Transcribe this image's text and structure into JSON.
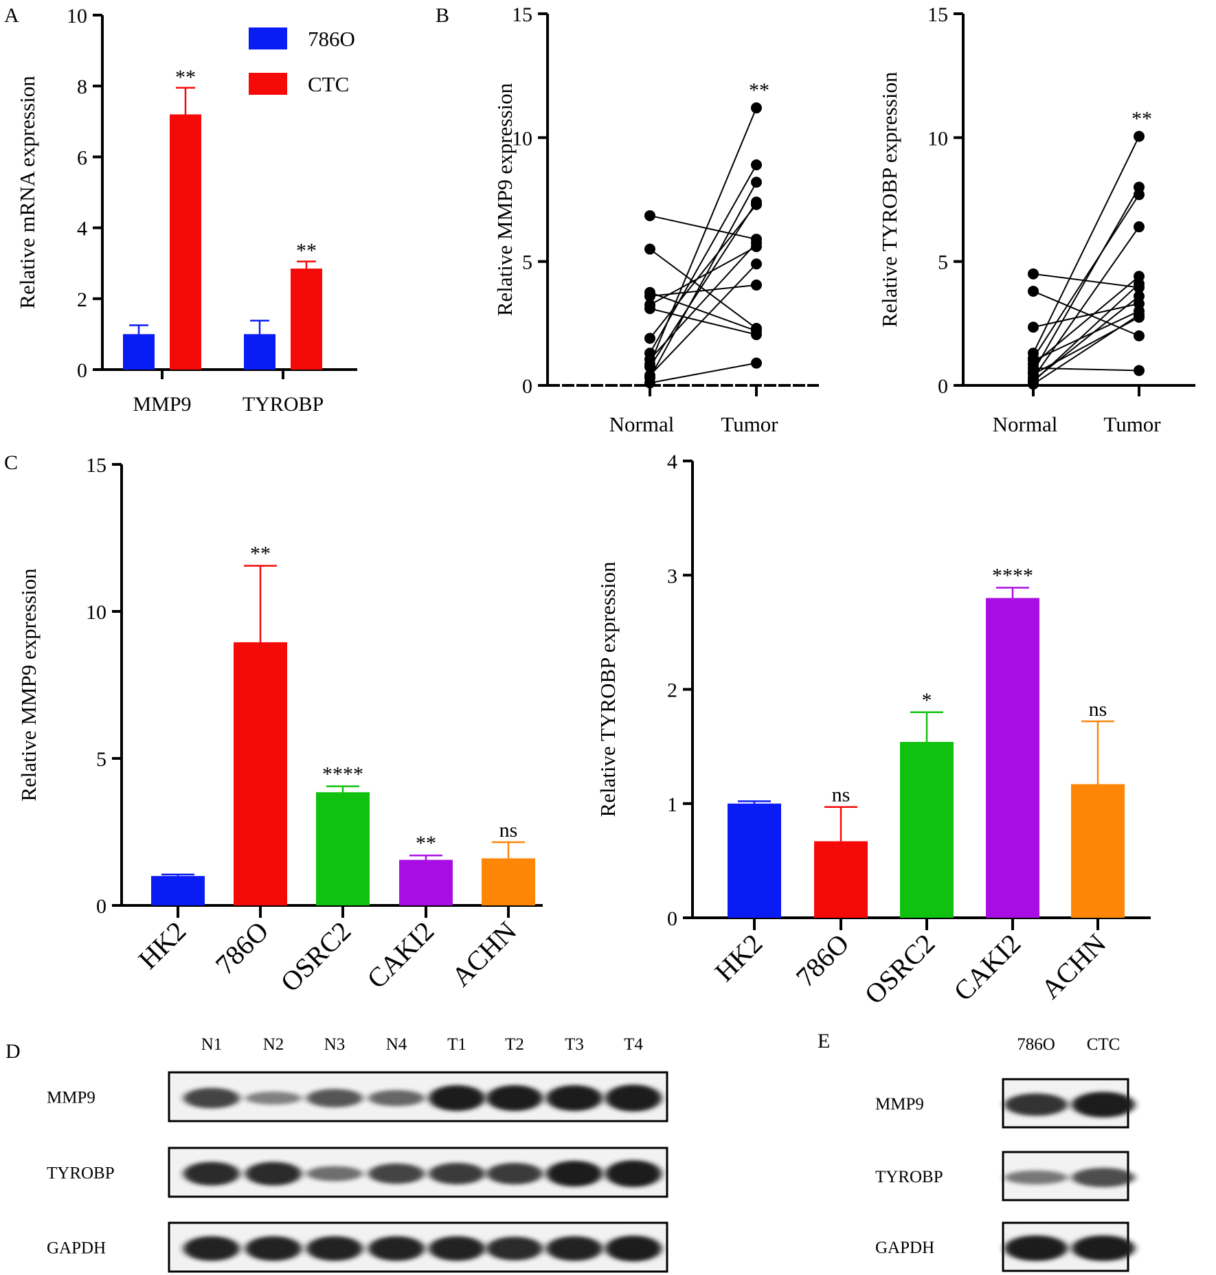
{
  "colors": {
    "blue": "#0a1cf4",
    "red": "#f50a0a",
    "green": "#10c10f",
    "purple": "#a80ee4",
    "orange": "#fe8607",
    "band": "#1a1a1a"
  },
  "panel_labels": {
    "A": "A",
    "B": "B",
    "C": "C",
    "D": "D",
    "E": "E"
  },
  "chart_data": [
    {
      "id": "A",
      "type": "bar",
      "title": "",
      "xlabel": "",
      "ylabel": "Relative mRNA expression",
      "ylim": [
        0,
        10
      ],
      "yticks": [
        0,
        2,
        4,
        6,
        8,
        10
      ],
      "categories": [
        "MMP9",
        "TYROBP"
      ],
      "legend_position": "top-right",
      "series": [
        {
          "name": "786O",
          "color": "blue",
          "values": [
            1.0,
            1.0
          ],
          "errors": [
            0.25,
            0.38
          ],
          "significance": [
            "",
            ""
          ]
        },
        {
          "name": "CTC",
          "color": "red",
          "values": [
            7.2,
            2.85
          ],
          "errors": [
            0.75,
            0.2
          ],
          "significance": [
            "**",
            "**"
          ]
        }
      ]
    },
    {
      "id": "B1",
      "type": "scatter",
      "subtype": "paired",
      "title": "",
      "xlabel": "",
      "ylabel": "Relative MMP9 expression",
      "ylim": [
        0,
        15
      ],
      "yticks": [
        0,
        5,
        10,
        15
      ],
      "categories": [
        "Normal",
        "Tumor"
      ],
      "significance": "**",
      "pairs": [
        [
          6.85,
          5.9
        ],
        [
          5.5,
          2.3
        ],
        [
          3.75,
          2.2
        ],
        [
          3.6,
          4.05
        ],
        [
          3.25,
          5.6
        ],
        [
          3.1,
          2.05
        ],
        [
          1.9,
          7.3
        ],
        [
          1.3,
          8.9
        ],
        [
          1.05,
          5.75
        ],
        [
          0.85,
          11.2
        ],
        [
          0.75,
          7.4
        ],
        [
          0.4,
          4.9
        ],
        [
          0.3,
          8.2
        ],
        [
          0.1,
          0.9
        ]
      ]
    },
    {
      "id": "B2",
      "type": "scatter",
      "subtype": "paired",
      "title": "",
      "xlabel": "",
      "ylabel": "Relative TYROBP expression",
      "ylim": [
        0,
        15
      ],
      "yticks": [
        0,
        5,
        10,
        15
      ],
      "categories": [
        "Normal",
        "Tumor"
      ],
      "significance": "**",
      "pairs": [
        [
          4.5,
          3.95
        ],
        [
          3.8,
          2.0
        ],
        [
          2.35,
          3.3
        ],
        [
          1.3,
          10.05
        ],
        [
          1.1,
          7.7
        ],
        [
          0.85,
          4.4
        ],
        [
          0.55,
          8.0
        ],
        [
          0.45,
          2.75
        ],
        [
          0.3,
          6.4
        ],
        [
          0.2,
          3.6
        ],
        [
          0.7,
          0.6
        ],
        [
          0.15,
          4.1
        ],
        [
          1.0,
          3.0
        ],
        [
          0.05,
          2.85
        ]
      ]
    },
    {
      "id": "C1",
      "type": "bar",
      "title": "",
      "xlabel": "",
      "ylabel": "Relative MMP9 expression",
      "ylim": [
        0,
        15
      ],
      "yticks": [
        0,
        5,
        10,
        15
      ],
      "categories": [
        "HK2",
        "786O",
        "OSRC2",
        "CAKI2",
        "ACHN"
      ],
      "colors": [
        "blue",
        "red",
        "green",
        "purple",
        "orange"
      ],
      "values": [
        1.0,
        8.95,
        3.85,
        1.55,
        1.6
      ],
      "errors": [
        0.05,
        2.6,
        0.2,
        0.15,
        0.55
      ],
      "significance": [
        "",
        "**",
        "****",
        "**",
        "ns"
      ]
    },
    {
      "id": "C2",
      "type": "bar",
      "title": "",
      "xlabel": "",
      "ylabel": "Relative TYROBP expression",
      "ylim": [
        0,
        4
      ],
      "yticks": [
        0,
        1,
        2,
        3,
        4
      ],
      "categories": [
        "HK2",
        "786O",
        "OSRC2",
        "CAKI2",
        "ACHN"
      ],
      "colors": [
        "blue",
        "red",
        "green",
        "purple",
        "orange"
      ],
      "values": [
        1.0,
        0.67,
        1.54,
        2.8,
        1.17
      ],
      "errors": [
        0.02,
        0.3,
        0.26,
        0.09,
        0.55
      ],
      "significance": [
        "",
        "ns",
        "*",
        "****",
        "ns"
      ]
    }
  ],
  "western_blots": [
    {
      "id": "D",
      "lanes": [
        "N1",
        "N2",
        "N3",
        "N4",
        "T1",
        "T2",
        "T3",
        "T4"
      ],
      "rows": [
        {
          "label": "MMP9",
          "intensity": [
            0.7,
            0.35,
            0.6,
            0.5,
            0.95,
            0.95,
            0.95,
            1.0
          ]
        },
        {
          "label": "TYROBP",
          "intensity": [
            0.85,
            0.85,
            0.45,
            0.7,
            0.75,
            0.75,
            0.95,
            1.0
          ]
        },
        {
          "label": "GAPDH",
          "intensity": [
            0.9,
            0.9,
            0.9,
            0.9,
            0.9,
            0.85,
            0.9,
            0.95
          ]
        }
      ]
    },
    {
      "id": "E",
      "lanes": [
        "786O",
        "CTC"
      ],
      "rows": [
        {
          "label": "MMP9",
          "intensity": [
            0.8,
            0.95
          ]
        },
        {
          "label": "TYROBP",
          "intensity": [
            0.4,
            0.65
          ]
        },
        {
          "label": "GAPDH",
          "intensity": [
            0.95,
            0.95
          ]
        }
      ]
    }
  ]
}
